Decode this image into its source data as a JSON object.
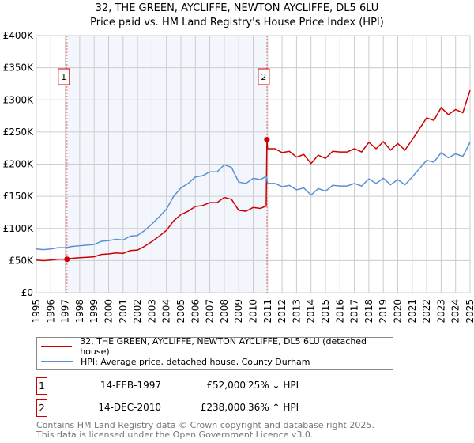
{
  "title": "32, THE GREEN, AYCLIFFE, NEWTON AYCLIFFE, DL5 6LU",
  "subtitle": "Price paid vs. HM Land Registry's House Price Index (HPI)",
  "chart_data": {
    "type": "line",
    "title": "32, THE GREEN, AYCLIFFE, NEWTON AYCLIFFE, DL5 6LU",
    "subtitle": "Price paid vs. HM Land Registry's House Price Index (HPI)",
    "xlim": [
      1995,
      2025
    ],
    "ylim": [
      0,
      400000
    ],
    "y_ticks": [
      {
        "v": 0,
        "label": "£0"
      },
      {
        "v": 50000,
        "label": "£50K"
      },
      {
        "v": 100000,
        "label": "£100K"
      },
      {
        "v": 150000,
        "label": "£150K"
      },
      {
        "v": 200000,
        "label": "£200K"
      },
      {
        "v": 250000,
        "label": "£250K"
      },
      {
        "v": 300000,
        "label": "£300K"
      },
      {
        "v": 350000,
        "label": "£350K"
      },
      {
        "v": 400000,
        "label": "£400K"
      }
    ],
    "x_ticks": [
      "1995",
      "1996",
      "1997",
      "1998",
      "1999",
      "2000",
      "2001",
      "2002",
      "2003",
      "2004",
      "2005",
      "2006",
      "2007",
      "2008",
      "2009",
      "2010",
      "2011",
      "2012",
      "2013",
      "2014",
      "2015",
      "2016",
      "2017",
      "2018",
      "2019",
      "2020",
      "2021",
      "2022",
      "2023",
      "2024",
      "2025"
    ],
    "grid": true,
    "shaded_range": [
      1997.12,
      2010.95
    ],
    "x": [
      1995,
      1995.5,
      1996,
      1996.5,
      1997,
      1997.5,
      1998,
      1998.5,
      1999,
      1999.5,
      2000,
      2000.5,
      2001,
      2001.5,
      2002,
      2002.5,
      2003,
      2003.5,
      2004,
      2004.5,
      2005,
      2005.5,
      2006,
      2006.5,
      2007,
      2007.5,
      2008,
      2008.5,
      2009,
      2009.5,
      2010,
      2010.5,
      2010.9,
      2011,
      2011.5,
      2012,
      2012.5,
      2013,
      2013.5,
      2014,
      2014.5,
      2015,
      2015.5,
      2016,
      2016.5,
      2017,
      2017.5,
      2018,
      2018.5,
      2019,
      2019.5,
      2020,
      2020.5,
      2021,
      2021.5,
      2022,
      2022.5,
      2023,
      2023.5,
      2024,
      2024.5,
      2025
    ],
    "series": [
      {
        "name": "32, THE GREEN, AYCLIFFE, NEWTON AYCLIFFE, DL5 6LU (detached house)",
        "color": "#cc0000",
        "values": [
          50700,
          49900,
          50700,
          52200,
          52200,
          53600,
          54400,
          55100,
          55900,
          59600,
          60300,
          61800,
          61100,
          65600,
          66300,
          72300,
          79700,
          87900,
          96900,
          111800,
          121400,
          126700,
          134100,
          135600,
          140100,
          140100,
          148300,
          145300,
          128100,
          126700,
          132600,
          131100,
          134800,
          224000,
          224000,
          218000,
          220000,
          211000,
          215000,
          201000,
          214000,
          209000,
          220000,
          219000,
          219000,
          224000,
          219000,
          234000,
          224000,
          235000,
          222000,
          232000,
          222000,
          238000,
          255000,
          272000,
          268000,
          288000,
          277000,
          285000,
          280000,
          315000
        ]
      },
      {
        "name": "HPI: Average price, detached house, County Durham",
        "color": "#5b8fd4",
        "values": [
          68000,
          67000,
          68000,
          70000,
          70000,
          72000,
          73000,
          74000,
          75000,
          80000,
          81000,
          83000,
          82000,
          88000,
          89000,
          97000,
          107000,
          118000,
          130000,
          150000,
          163000,
          170000,
          180000,
          182000,
          188000,
          188000,
          199000,
          195000,
          172000,
          170000,
          178000,
          176000,
          181000,
          170000,
          170000,
          165000,
          167000,
          160000,
          163000,
          152000,
          162000,
          158000,
          167000,
          166000,
          166000,
          170000,
          166000,
          177000,
          170000,
          178000,
          168000,
          176000,
          168000,
          180000,
          193000,
          206000,
          203000,
          218000,
          210000,
          216000,
          212000,
          234000
        ]
      }
    ],
    "sales": [
      {
        "id": "1",
        "x": 1997.12,
        "price": 52000
      },
      {
        "id": "2",
        "x": 2010.95,
        "price": 238000
      }
    ],
    "legend": "bottom"
  },
  "sales_table": [
    {
      "id": "1",
      "date": "14-FEB-1997",
      "price": "£52,000",
      "hpi": "25% ↓ HPI"
    },
    {
      "id": "2",
      "date": "14-DEC-2010",
      "price": "£238,000",
      "hpi": "36% ↑ HPI"
    }
  ],
  "footer": [
    "Contains HM Land Registry data © Crown copyright and database right 2025.",
    "This data is licensed under the Open Government Licence v3.0."
  ]
}
